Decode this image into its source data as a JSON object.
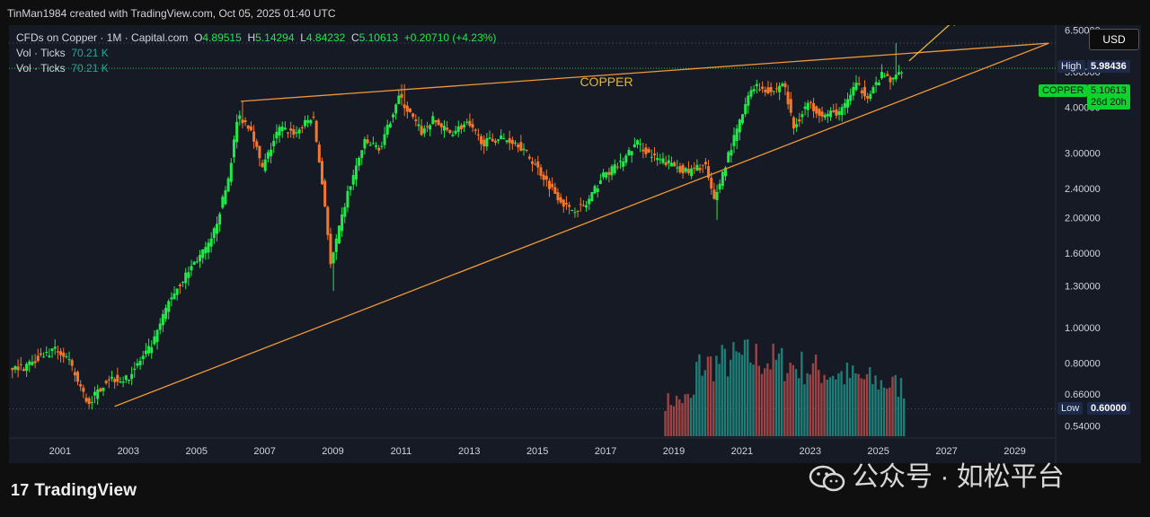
{
  "header": {
    "attribution": "TinMan1984 created with TradingView.com, Oct 05, 2025 01:40 UTC"
  },
  "legend": {
    "symbol": "CFDs on Copper · 1M · Capital.com",
    "open_label": "O",
    "open": "4.89515",
    "high_label": "H",
    "high": "5.14294",
    "low_label": "L",
    "low": "4.84232",
    "close_label": "C",
    "close": "5.10613",
    "change": "+0.20710 (+4.23%)",
    "vol1_label": "Vol · Ticks",
    "vol1": "70.21 K",
    "vol2_label": "Vol · Ticks",
    "vol2": "70.21 K"
  },
  "currency_button": "USD",
  "annotations": {
    "title": "COPPER"
  },
  "price_tags": {
    "high_label": "High",
    "high_value": "5.98436",
    "symbol_label": "COPPER",
    "last_value": "5.10613",
    "countdown": "26d 20h",
    "low_label": "Low",
    "low_value": "0.60000"
  },
  "branding": {
    "logo_text": "TradingView",
    "logo_mark": "17",
    "watermark": "公众号 · 如松平台"
  },
  "colors": {
    "up": "#22e84a",
    "down": "#f7772a",
    "trend": "#f0983a",
    "arrow": "#e3b53a",
    "vol_up": "#1f8f86",
    "vol_down": "#b34b4b",
    "background": "#161a25"
  },
  "chart_data": {
    "type": "candlestick",
    "scale": "log",
    "ylim": [
      0.5,
      6.7
    ],
    "xlim": [
      1999.5,
      2030.2
    ],
    "y_ticks": [
      "6.50000",
      "5.00000",
      "4.00000",
      "3.00000",
      "2.40000",
      "2.00000",
      "1.60000",
      "1.30000",
      "1.00000",
      "0.80000",
      "0.66000",
      "0.54000"
    ],
    "x_ticks": [
      "2001",
      "2003",
      "2005",
      "2007",
      "2009",
      "2011",
      "2013",
      "2015",
      "2017",
      "2019",
      "2021",
      "2023",
      "2025",
      "2027",
      "2029"
    ],
    "anchors": [
      [
        2000.0,
        0.78
      ],
      [
        2000.5,
        0.84
      ],
      [
        2001.0,
        0.87
      ],
      [
        2001.3,
        0.82
      ],
      [
        2001.9,
        0.62
      ],
      [
        2002.5,
        0.73
      ],
      [
        2003.0,
        0.72
      ],
      [
        2003.8,
        0.9
      ],
      [
        2004.3,
        1.2
      ],
      [
        2005.0,
        1.5
      ],
      [
        2005.5,
        1.7
      ],
      [
        2006.0,
        2.5
      ],
      [
        2006.3,
        3.8
      ],
      [
        2006.7,
        3.5
      ],
      [
        2007.0,
        2.7
      ],
      [
        2007.5,
        3.5
      ],
      [
        2008.0,
        3.4
      ],
      [
        2008.5,
        3.8
      ],
      [
        2008.9,
        2.0
      ],
      [
        2009.0,
        1.45
      ],
      [
        2009.5,
        2.3
      ],
      [
        2010.0,
        3.2
      ],
      [
        2010.5,
        3.1
      ],
      [
        2011.0,
        4.3
      ],
      [
        2011.7,
        3.4
      ],
      [
        2012.0,
        3.7
      ],
      [
        2012.5,
        3.4
      ],
      [
        2013.0,
        3.6
      ],
      [
        2013.5,
        3.2
      ],
      [
        2014.0,
        3.3
      ],
      [
        2014.5,
        3.2
      ],
      [
        2015.0,
        2.8
      ],
      [
        2015.5,
        2.4
      ],
      [
        2016.0,
        2.1
      ],
      [
        2016.5,
        2.15
      ],
      [
        2017.0,
        2.6
      ],
      [
        2017.5,
        2.8
      ],
      [
        2018.0,
        3.2
      ],
      [
        2018.5,
        2.9
      ],
      [
        2019.0,
        2.8
      ],
      [
        2019.5,
        2.65
      ],
      [
        2020.0,
        2.8
      ],
      [
        2020.25,
        2.2
      ],
      [
        2020.7,
        3.0
      ],
      [
        2021.0,
        3.6
      ],
      [
        2021.4,
        4.6
      ],
      [
        2022.0,
        4.4
      ],
      [
        2022.3,
        4.7
      ],
      [
        2022.6,
        3.5
      ],
      [
        2023.0,
        4.1
      ],
      [
        2023.5,
        3.8
      ],
      [
        2024.0,
        3.9
      ],
      [
        2024.4,
        4.6
      ],
      [
        2024.8,
        4.3
      ],
      [
        2025.2,
        4.9
      ],
      [
        2025.5,
        4.7
      ],
      [
        2025.75,
        5.1
      ]
    ],
    "highlights": [
      [
        2020.25,
        1.97
      ],
      [
        2009.0,
        1.26
      ],
      [
        2025.5,
        5.98436
      ],
      [
        2011.05,
        4.62
      ],
      [
        2006.35,
        4.15
      ],
      [
        2001.85,
        0.6
      ]
    ],
    "volume": {
      "start": 2018.75,
      "end": 2025.75,
      "max_ticks": 70.21,
      "peak_year": 2021.2
    },
    "trendlines": [
      {
        "name": "upper",
        "from": [
          2006.3,
          4.15
        ],
        "to": [
          2030.0,
          5.98
        ]
      },
      {
        "name": "lower",
        "from": [
          2002.6,
          0.61
        ],
        "to": [
          2030.0,
          5.98
        ]
      }
    ],
    "projection_arrow": {
      "from": [
        2025.9,
        5.35
      ],
      "to": [
        2027.3,
        7.0
      ]
    }
  }
}
